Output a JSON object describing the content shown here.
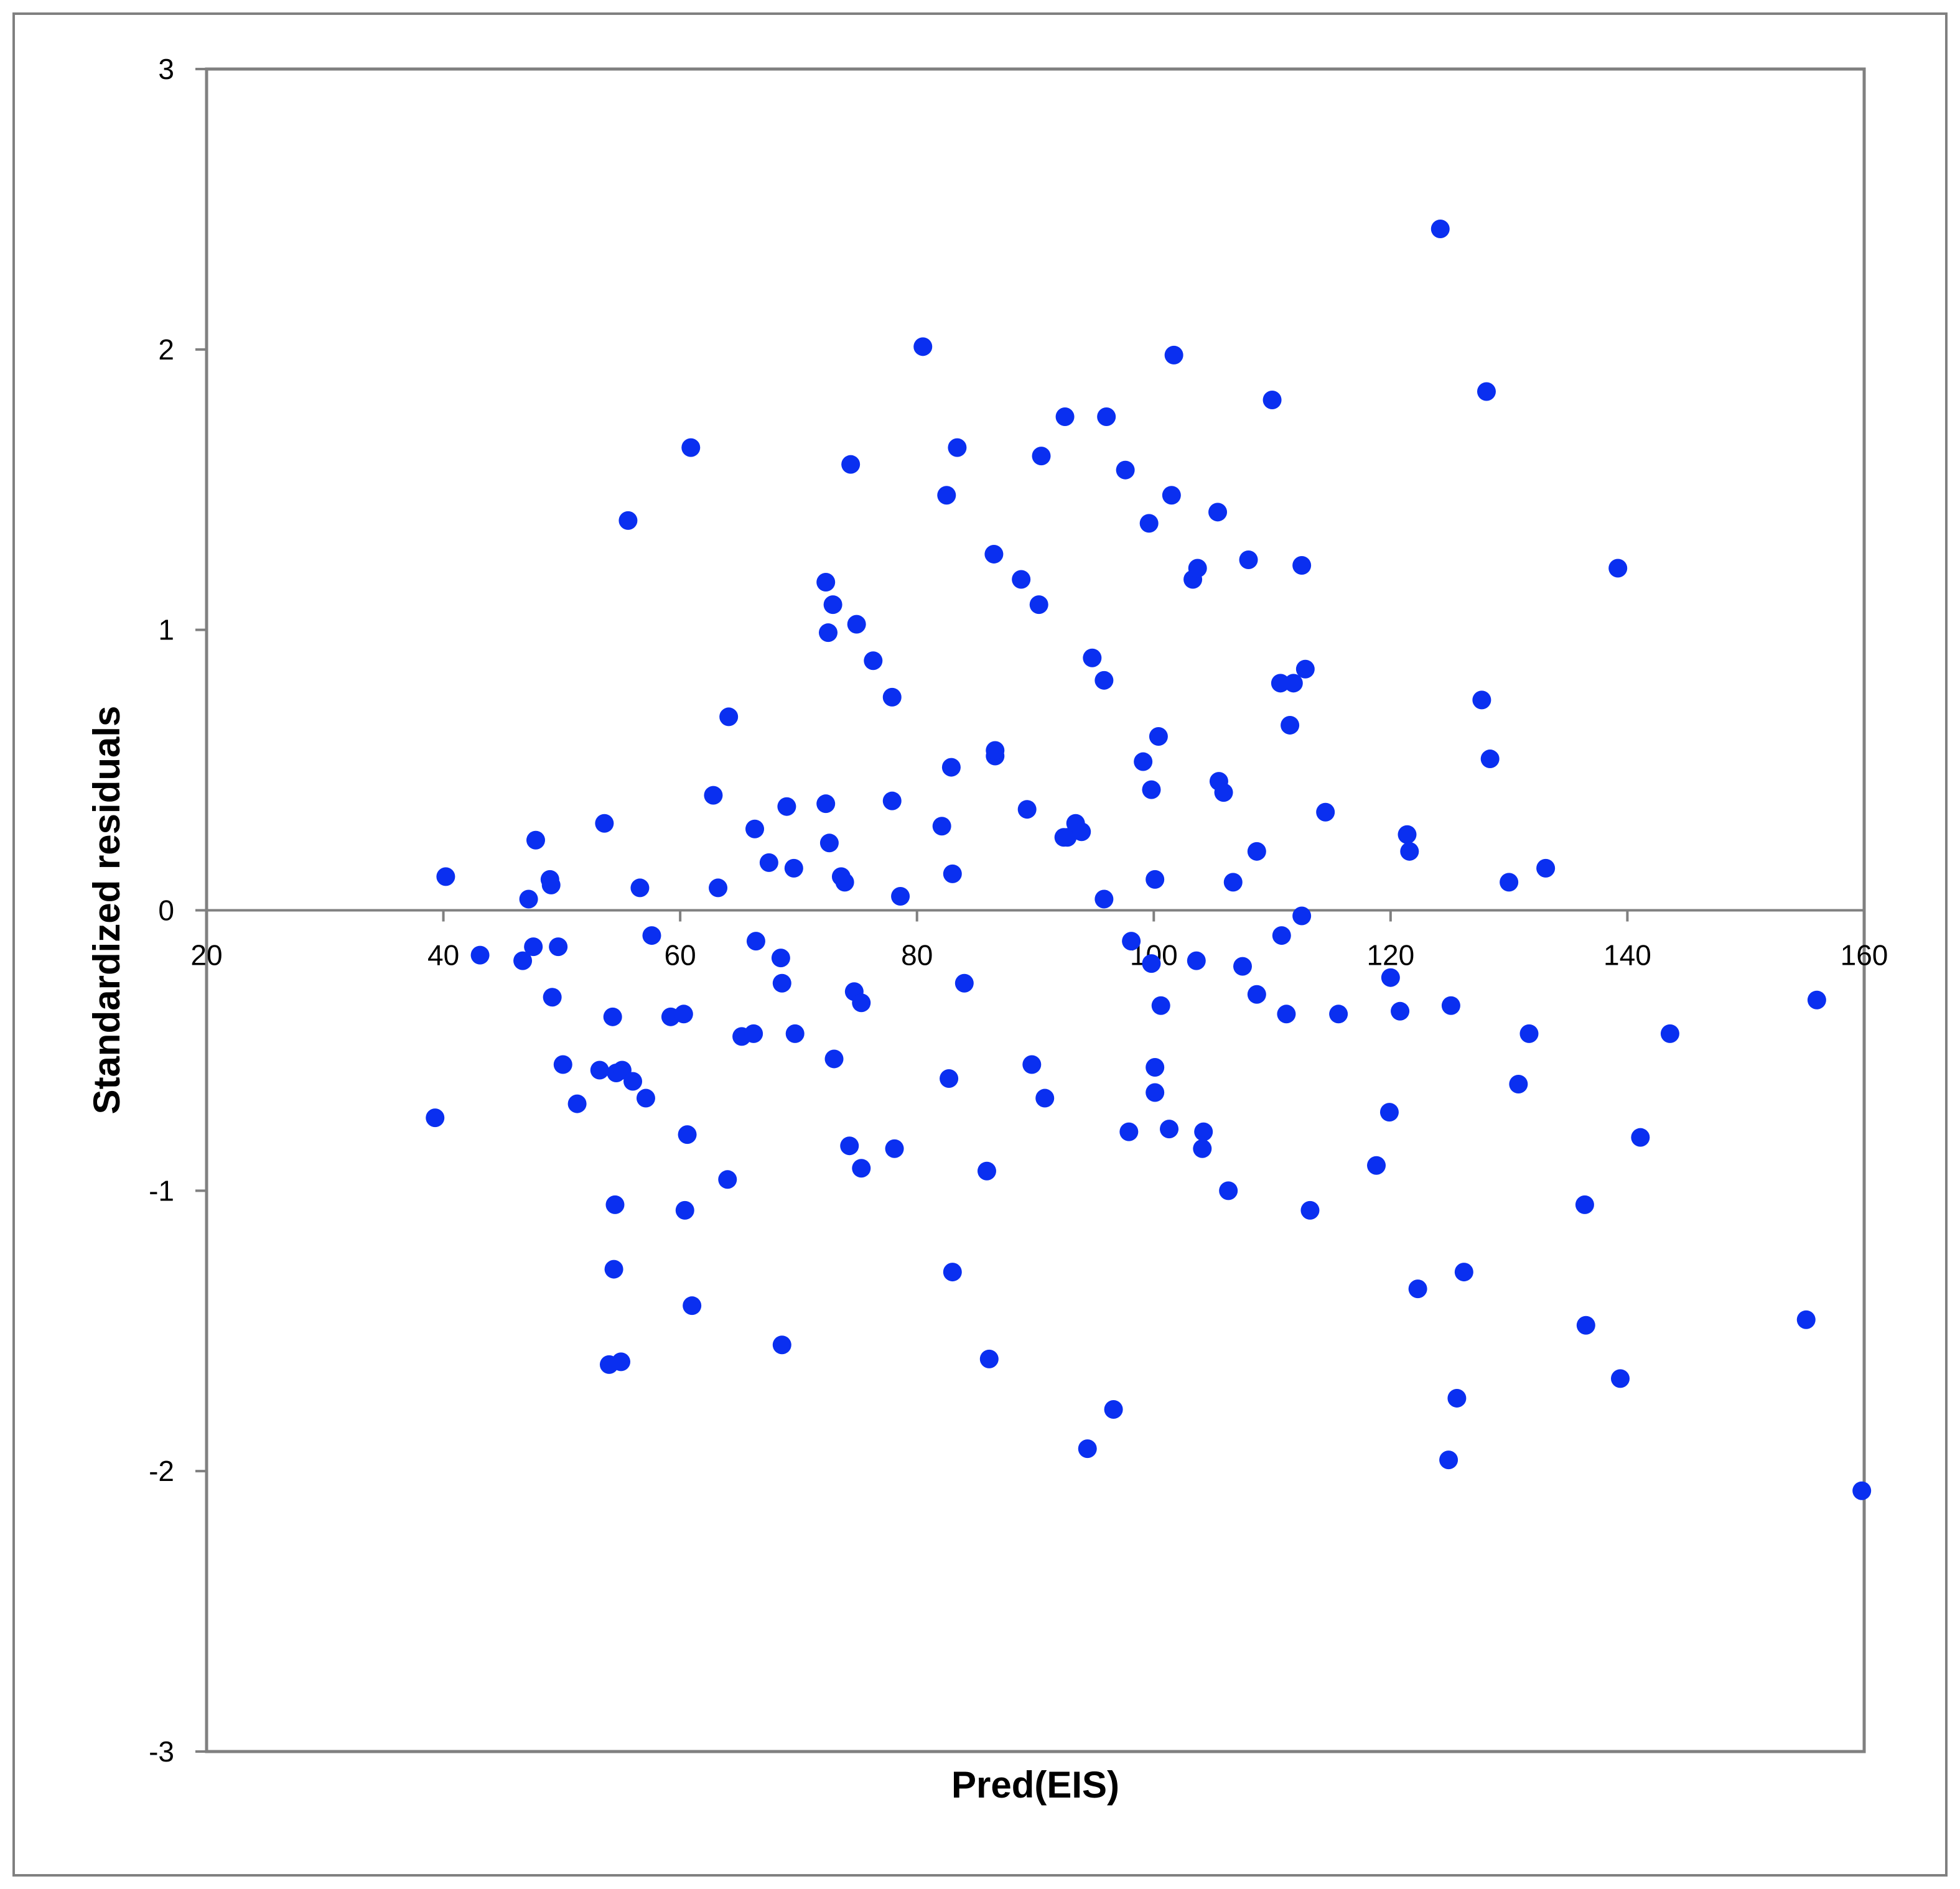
{
  "chart_data": {
    "type": "scatter",
    "title": "",
    "xlabel": "Pred(EIS)",
    "ylabel": "Standardized residuals",
    "xlim": [
      20,
      160
    ],
    "ylim": [
      -3,
      3
    ],
    "x_ticks": [
      20,
      40,
      60,
      80,
      100,
      120,
      140,
      160
    ],
    "y_ticks": [
      -3,
      -2,
      -1,
      0,
      1,
      2,
      3
    ],
    "x_tick_labels": [
      "20",
      "40",
      "60",
      "80",
      "100",
      "120",
      "140",
      "160"
    ],
    "y_tick_labels": [
      "-3",
      "-2",
      "-1",
      "0",
      "1",
      "2",
      "3"
    ],
    "grid": false,
    "legend": "none",
    "marker_color": "#0a2ff0",
    "frame_color": "#808080",
    "series": [
      {
        "points": [
          [
            40.2,
            0.12
          ],
          [
            39.3,
            -0.74
          ],
          [
            43.1,
            -0.16
          ],
          [
            46.7,
            -0.18
          ],
          [
            47.2,
            0.04
          ],
          [
            47.6,
            -0.13
          ],
          [
            47.8,
            0.25
          ],
          [
            49.0,
            0.11
          ],
          [
            49.1,
            0.09
          ],
          [
            49.2,
            -0.31
          ],
          [
            49.7,
            -0.13
          ],
          [
            50.1,
            -0.55
          ],
          [
            51.3,
            -0.69
          ],
          [
            53.2,
            -0.57
          ],
          [
            53.6,
            0.31
          ],
          [
            54.0,
            -1.62
          ],
          [
            54.3,
            -0.38
          ],
          [
            54.4,
            -1.28
          ],
          [
            54.5,
            -1.05
          ],
          [
            54.6,
            -0.58
          ],
          [
            55.0,
            -1.61
          ],
          [
            55.1,
            -0.57
          ],
          [
            55.6,
            1.39
          ],
          [
            56.0,
            -0.61
          ],
          [
            56.6,
            0.08
          ],
          [
            57.1,
            -0.67
          ],
          [
            57.6,
            -0.09
          ],
          [
            59.2,
            -0.38
          ],
          [
            60.3,
            -0.37
          ],
          [
            60.4,
            -1.07
          ],
          [
            60.6,
            -0.8
          ],
          [
            60.9,
            1.65
          ],
          [
            61.0,
            -1.41
          ],
          [
            62.8,
            0.41
          ],
          [
            63.2,
            0.08
          ],
          [
            64.0,
            -0.96
          ],
          [
            64.1,
            0.69
          ],
          [
            65.2,
            -0.45
          ],
          [
            66.2,
            -0.44
          ],
          [
            66.3,
            0.29
          ],
          [
            66.4,
            -0.11
          ],
          [
            67.5,
            0.17
          ],
          [
            68.5,
            -0.17
          ],
          [
            68.6,
            -0.26
          ],
          [
            68.6,
            -1.55
          ],
          [
            69.0,
            0.37
          ],
          [
            69.6,
            0.15
          ],
          [
            69.7,
            -0.44
          ],
          [
            72.3,
            0.38
          ],
          [
            72.3,
            1.17
          ],
          [
            72.5,
            0.99
          ],
          [
            72.6,
            0.24
          ],
          [
            72.9,
            1.09
          ],
          [
            73.0,
            -0.53
          ],
          [
            73.6,
            0.12
          ],
          [
            73.9,
            0.1
          ],
          [
            74.3,
            -0.84
          ],
          [
            74.4,
            1.59
          ],
          [
            74.7,
            -0.29
          ],
          [
            74.9,
            1.02
          ],
          [
            75.3,
            -0.92
          ],
          [
            75.3,
            -0.33
          ],
          [
            76.3,
            0.89
          ],
          [
            77.9,
            0.76
          ],
          [
            77.9,
            0.39
          ],
          [
            78.1,
            -0.85
          ],
          [
            78.6,
            0.05
          ],
          [
            80.5,
            2.01
          ],
          [
            82.1,
            0.3
          ],
          [
            82.5,
            1.48
          ],
          [
            82.7,
            -0.6
          ],
          [
            82.9,
            0.51
          ],
          [
            83.0,
            0.13
          ],
          [
            83.0,
            -1.29
          ],
          [
            83.4,
            1.65
          ],
          [
            84.0,
            -0.26
          ],
          [
            85.9,
            -0.93
          ],
          [
            86.1,
            -1.6
          ],
          [
            86.5,
            1.27
          ],
          [
            86.6,
            0.55
          ],
          [
            86.6,
            0.57
          ],
          [
            88.8,
            1.18
          ],
          [
            89.3,
            0.36
          ],
          [
            89.7,
            -0.55
          ],
          [
            90.3,
            1.09
          ],
          [
            90.5,
            1.62
          ],
          [
            90.8,
            -0.67
          ],
          [
            92.4,
            0.26
          ],
          [
            92.5,
            1.76
          ],
          [
            92.7,
            0.26
          ],
          [
            93.4,
            0.31
          ],
          [
            93.9,
            0.28
          ],
          [
            94.4,
            -1.92
          ],
          [
            94.8,
            0.9
          ],
          [
            95.8,
            0.04
          ],
          [
            95.8,
            0.82
          ],
          [
            96.0,
            1.76
          ],
          [
            96.6,
            -1.78
          ],
          [
            97.6,
            1.57
          ],
          [
            97.9,
            -0.79
          ],
          [
            98.1,
            -0.11
          ],
          [
            99.1,
            0.53
          ],
          [
            99.6,
            1.38
          ],
          [
            99.8,
            -0.19
          ],
          [
            99.8,
            0.43
          ],
          [
            100.1,
            0.11
          ],
          [
            100.1,
            -0.56
          ],
          [
            100.1,
            -0.65
          ],
          [
            100.4,
            0.62
          ],
          [
            100.6,
            -0.34
          ],
          [
            101.3,
            -0.78
          ],
          [
            101.5,
            1.48
          ],
          [
            101.7,
            1.98
          ],
          [
            103.3,
            1.18
          ],
          [
            103.7,
            1.22
          ],
          [
            103.6,
            -0.18
          ],
          [
            104.2,
            -0.79
          ],
          [
            104.1,
            -0.85
          ],
          [
            105.4,
            1.42
          ],
          [
            105.5,
            0.46
          ],
          [
            105.9,
            0.42
          ],
          [
            106.3,
            -1.0
          ],
          [
            106.7,
            0.1
          ],
          [
            107.5,
            -0.2
          ],
          [
            108.0,
            1.25
          ],
          [
            108.7,
            -0.3
          ],
          [
            108.7,
            0.21
          ],
          [
            110.0,
            1.82
          ],
          [
            110.7,
            0.81
          ],
          [
            110.8,
            -0.09
          ],
          [
            111.2,
            -0.37
          ],
          [
            111.5,
            0.66
          ],
          [
            111.8,
            0.81
          ],
          [
            112.5,
            1.23
          ],
          [
            112.5,
            -0.02
          ],
          [
            112.8,
            0.86
          ],
          [
            113.2,
            -1.07
          ],
          [
            114.5,
            0.35
          ],
          [
            115.6,
            -0.37
          ],
          [
            118.8,
            -0.91
          ],
          [
            119.9,
            -0.72
          ],
          [
            120.0,
            -0.24
          ],
          [
            120.8,
            -0.36
          ],
          [
            121.4,
            0.27
          ],
          [
            121.6,
            0.21
          ],
          [
            122.3,
            -1.35
          ],
          [
            124.2,
            2.43
          ],
          [
            124.9,
            -1.96
          ],
          [
            125.1,
            -0.34
          ],
          [
            125.6,
            -1.74
          ],
          [
            126.2,
            -1.29
          ],
          [
            127.7,
            0.75
          ],
          [
            128.1,
            1.85
          ],
          [
            128.4,
            0.54
          ],
          [
            130.0,
            0.1
          ],
          [
            130.8,
            -0.62
          ],
          [
            131.7,
            -0.44
          ],
          [
            133.1,
            0.15
          ],
          [
            136.4,
            -1.05
          ],
          [
            136.5,
            -1.48
          ],
          [
            139.2,
            1.22
          ],
          [
            139.4,
            -1.67
          ],
          [
            141.1,
            -0.81
          ],
          [
            143.6,
            -0.44
          ],
          [
            155.1,
            -1.46
          ],
          [
            156.0,
            -0.32
          ],
          [
            159.8,
            -2.07
          ]
        ]
      }
    ]
  }
}
